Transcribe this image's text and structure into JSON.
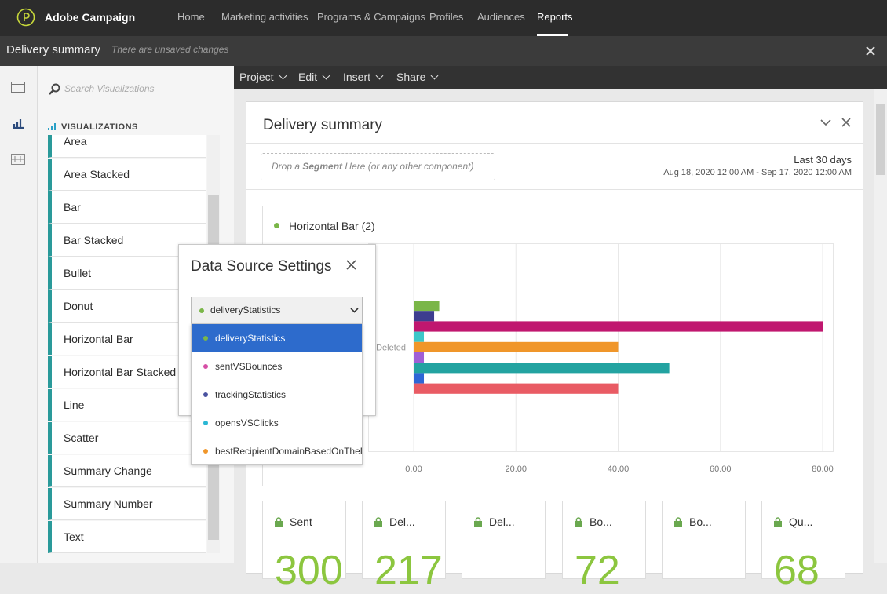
{
  "app": {
    "name": "Adobe Campaign",
    "nav": [
      "Home",
      "Marketing activities",
      "Programs & Campaigns",
      "Profiles",
      "Audiences",
      "Reports"
    ]
  },
  "header": {
    "title": "Delivery summary",
    "status": "There are unsaved changes"
  },
  "sidebar": {
    "search_placeholder": "Search Visualizations",
    "section": "VISUALIZATIONS",
    "items": [
      "Area",
      "Area Stacked",
      "Bar",
      "Bar Stacked",
      "Bullet",
      "Donut",
      "Horizontal Bar",
      "Horizontal Bar Stacked",
      "Line",
      "Scatter",
      "Summary Change",
      "Summary Number",
      "Text"
    ]
  },
  "toolbar": [
    "Project",
    "Edit",
    "Insert",
    "Share"
  ],
  "panel": {
    "title": "Delivery summary",
    "drop_zone": {
      "prefix": "Drop a",
      "keyword": "Segment",
      "suffix": "Here (or any other component)"
    },
    "date_label": "Last 30 days",
    "date_range": "Aug 18, 2020 12:00 AM - Sep 17, 2020 12:00 AM"
  },
  "chart_data": {
    "type": "bar",
    "orientation": "horizontal",
    "title": "Horizontal Bar (2)",
    "categories": [
      null,
      null,
      null,
      null,
      "Deleted",
      null,
      null,
      null,
      null
    ],
    "values": [
      5,
      4,
      80,
      2,
      40,
      2,
      50,
      2,
      40
    ],
    "colors": [
      "#7ab648",
      "#3d3d8f",
      "#c0176f",
      "#3cc7c9",
      "#f0962a",
      "#a05fd6",
      "#23a3a1",
      "#2e66d6",
      "#e95b64"
    ],
    "xticks": [
      {
        "value": 0,
        "label": "0.00"
      },
      {
        "value": 20,
        "label": "20.00"
      },
      {
        "value": 40,
        "label": "40.00"
      },
      {
        "value": 60,
        "label": "60.00"
      },
      {
        "value": 80,
        "label": "80.00"
      }
    ],
    "grid": true
  },
  "popup": {
    "title": "Data Source Settings",
    "selected": "deliveryStatistics",
    "options": [
      {
        "name": "deliveryStatistics",
        "color": "#7ab648"
      },
      {
        "name": "sentVSBounces",
        "color": "#d64fa6"
      },
      {
        "name": "trackingStatistics",
        "color": "#4a52a0"
      },
      {
        "name": "opensVSClicks",
        "color": "#2bb7d4"
      },
      {
        "name": "bestRecipientDomainBasedOnTheD",
        "color": "#f0962a"
      }
    ]
  },
  "cards": [
    {
      "label": "Sent",
      "value": "300"
    },
    {
      "label": "Del...",
      "value": "217"
    },
    {
      "label": "Del...",
      "value": ""
    },
    {
      "label": "Bo...",
      "value": "72"
    },
    {
      "label": "Bo...",
      "value": ""
    },
    {
      "label": "Qu...",
      "value": "68"
    }
  ]
}
